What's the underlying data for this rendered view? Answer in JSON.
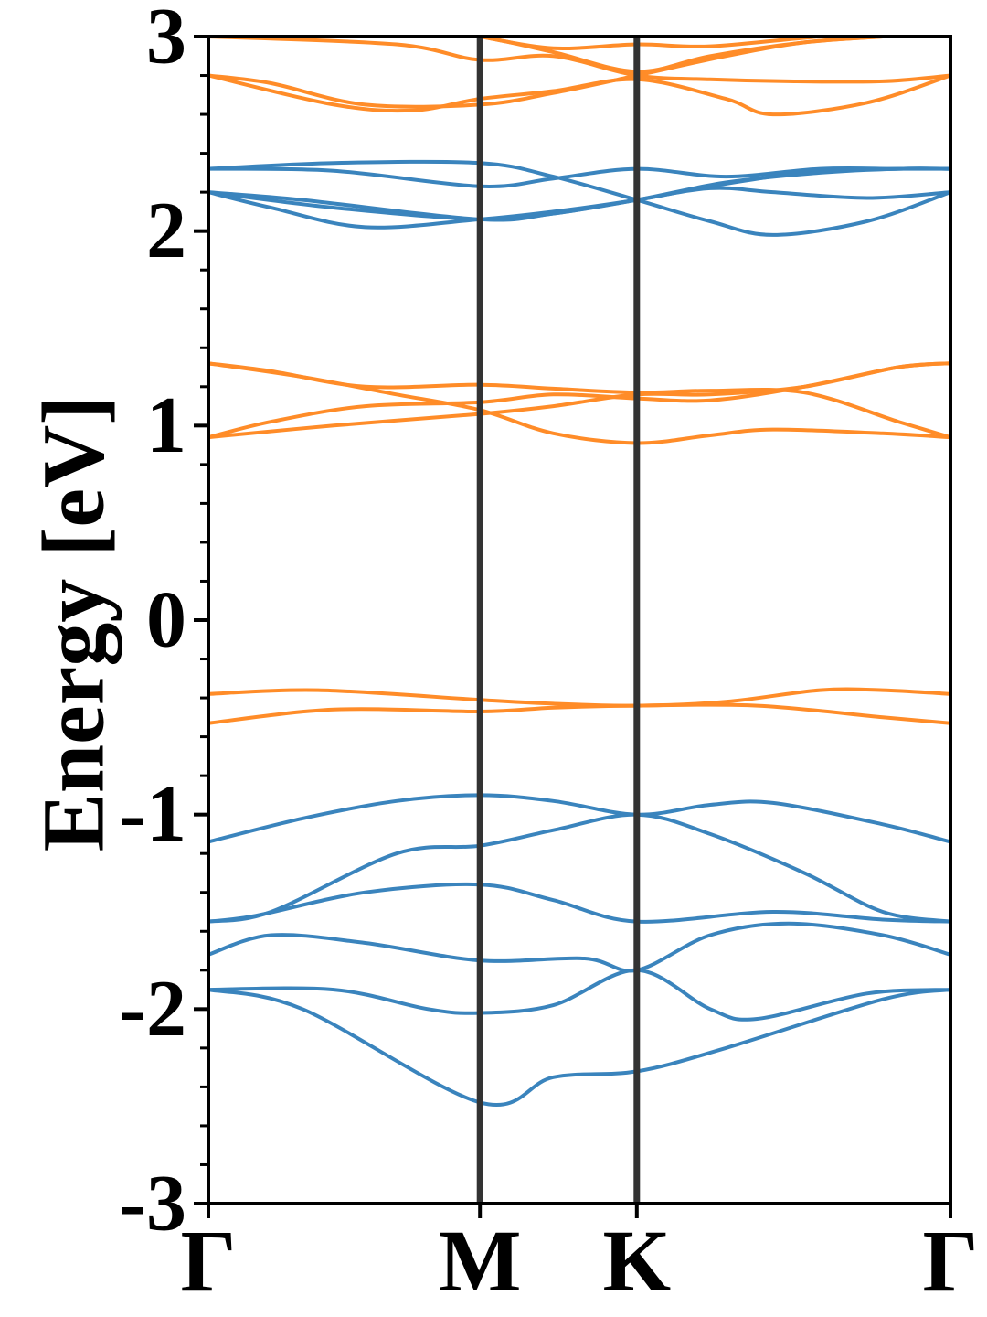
{
  "chart_data": {
    "type": "line",
    "ylabel": "Energy [eV]",
    "ylim": [
      -3,
      3
    ],
    "y_major_ticks": [
      -3,
      -2,
      -1,
      0,
      1,
      2,
      3
    ],
    "y_tick_labels": [
      "-3",
      "-2",
      "-1",
      "0",
      "1",
      "2",
      "3"
    ],
    "y_minor_step": 0.2,
    "x_ticks": [
      0,
      1.732,
      2.732,
      4.732
    ],
    "x_tick_labels": [
      "Γ",
      "M",
      "K",
      "Γ"
    ],
    "grid": false,
    "colors": {
      "blue": "#3a84bd",
      "orange": "#ff8c28",
      "kline": "#333333"
    },
    "bands": [
      {
        "color": "blue",
        "points": [
          [
            0,
            -1.9
          ],
          [
            0.6,
            -2.0
          ],
          [
            1.732,
            -2.48
          ],
          [
            2.2,
            -2.35
          ],
          [
            2.732,
            -2.32
          ],
          [
            3.3,
            -2.2
          ],
          [
            4.3,
            -1.95
          ],
          [
            4.732,
            -1.9
          ]
        ]
      },
      {
        "color": "blue",
        "points": [
          [
            0,
            -1.9
          ],
          [
            0.8,
            -1.9
          ],
          [
            1.4,
            -2.0
          ],
          [
            1.732,
            -2.02
          ],
          [
            2.2,
            -1.98
          ],
          [
            2.732,
            -1.8
          ],
          [
            3.2,
            -2.0
          ],
          [
            3.5,
            -2.05
          ],
          [
            4.2,
            -1.92
          ],
          [
            4.732,
            -1.9
          ]
        ]
      },
      {
        "color": "blue",
        "points": [
          [
            0,
            -1.72
          ],
          [
            0.4,
            -1.62
          ],
          [
            1.0,
            -1.66
          ],
          [
            1.732,
            -1.75
          ],
          [
            2.4,
            -1.74
          ],
          [
            2.732,
            -1.8
          ],
          [
            3.2,
            -1.62
          ],
          [
            3.7,
            -1.56
          ],
          [
            4.3,
            -1.62
          ],
          [
            4.732,
            -1.72
          ]
        ]
      },
      {
        "color": "blue",
        "points": [
          [
            0,
            -1.55
          ],
          [
            0.3,
            -1.52
          ],
          [
            1.0,
            -1.4
          ],
          [
            1.732,
            -1.36
          ],
          [
            2.2,
            -1.44
          ],
          [
            2.732,
            -1.55
          ],
          [
            3.6,
            -1.5
          ],
          [
            4.3,
            -1.54
          ],
          [
            4.732,
            -1.55
          ]
        ]
      },
      {
        "color": "blue",
        "points": [
          [
            0,
            -1.55
          ],
          [
            0.4,
            -1.5
          ],
          [
            1.2,
            -1.2
          ],
          [
            1.732,
            -1.16
          ],
          [
            2.2,
            -1.08
          ],
          [
            2.732,
            -1.0
          ],
          [
            3.2,
            -1.1
          ],
          [
            3.8,
            -1.3
          ],
          [
            4.3,
            -1.5
          ],
          [
            4.732,
            -1.55
          ]
        ]
      },
      {
        "color": "blue",
        "points": [
          [
            0,
            -1.14
          ],
          [
            0.6,
            -1.02
          ],
          [
            1.2,
            -0.93
          ],
          [
            1.732,
            -0.9
          ],
          [
            2.2,
            -0.93
          ],
          [
            2.732,
            -1.0
          ],
          [
            3.2,
            -0.95
          ],
          [
            3.6,
            -0.94
          ],
          [
            4.3,
            -1.05
          ],
          [
            4.732,
            -1.14
          ]
        ]
      },
      {
        "color": "orange",
        "points": [
          [
            0,
            -0.53
          ],
          [
            0.8,
            -0.46
          ],
          [
            1.732,
            -0.47
          ],
          [
            2.2,
            -0.45
          ],
          [
            2.732,
            -0.44
          ],
          [
            3.5,
            -0.44
          ],
          [
            4.3,
            -0.5
          ],
          [
            4.732,
            -0.53
          ]
        ]
      },
      {
        "color": "orange",
        "points": [
          [
            0,
            -0.38
          ],
          [
            0.7,
            -0.36
          ],
          [
            1.732,
            -0.41
          ],
          [
            2.2,
            -0.43
          ],
          [
            2.732,
            -0.44
          ],
          [
            3.3,
            -0.42
          ],
          [
            3.9,
            -0.36
          ],
          [
            4.3,
            -0.36
          ],
          [
            4.732,
            -0.38
          ]
        ]
      },
      {
        "color": "orange",
        "points": [
          [
            0,
            0.94
          ],
          [
            0.8,
            1.0
          ],
          [
            1.732,
            1.06
          ],
          [
            2.2,
            1.1
          ],
          [
            2.732,
            1.16
          ],
          [
            3.2,
            1.16
          ],
          [
            3.8,
            1.2
          ],
          [
            4.4,
            1.3
          ],
          [
            4.732,
            1.32
          ]
        ]
      },
      {
        "color": "orange",
        "points": [
          [
            0,
            0.94
          ],
          [
            0.4,
            1.02
          ],
          [
            1.0,
            1.1
          ],
          [
            1.732,
            1.12
          ],
          [
            2.2,
            1.16
          ],
          [
            2.732,
            1.14
          ],
          [
            3.2,
            1.13
          ],
          [
            3.8,
            1.2
          ],
          [
            4.4,
            1.3
          ],
          [
            4.732,
            1.32
          ]
        ]
      },
      {
        "color": "orange",
        "points": [
          [
            0,
            1.32
          ],
          [
            0.4,
            1.28
          ],
          [
            1.0,
            1.2
          ],
          [
            1.732,
            1.21
          ],
          [
            2.2,
            1.19
          ],
          [
            2.732,
            1.17
          ],
          [
            3.2,
            1.18
          ],
          [
            3.8,
            1.17
          ],
          [
            4.4,
            1.02
          ],
          [
            4.732,
            0.94
          ]
        ]
      },
      {
        "color": "orange",
        "points": [
          [
            0,
            1.32
          ],
          [
            0.6,
            1.25
          ],
          [
            1.2,
            1.16
          ],
          [
            1.732,
            1.08
          ],
          [
            2.2,
            0.96
          ],
          [
            2.732,
            0.91
          ],
          [
            3.2,
            0.95
          ],
          [
            3.6,
            0.98
          ],
          [
            4.3,
            0.96
          ],
          [
            4.732,
            0.94
          ]
        ]
      },
      {
        "color": "blue",
        "points": [
          [
            0,
            2.2
          ],
          [
            0.4,
            2.12
          ],
          [
            1.0,
            2.02
          ],
          [
            1.732,
            2.06
          ],
          [
            2.2,
            2.1
          ],
          [
            2.732,
            2.16
          ],
          [
            3.2,
            2.23
          ],
          [
            3.8,
            2.3
          ],
          [
            4.4,
            2.32
          ],
          [
            4.732,
            2.32
          ]
        ]
      },
      {
        "color": "blue",
        "points": [
          [
            0,
            2.2
          ],
          [
            0.8,
            2.12
          ],
          [
            1.732,
            2.06
          ],
          [
            2.2,
            2.09
          ],
          [
            2.732,
            2.16
          ],
          [
            3.3,
            2.25
          ],
          [
            3.9,
            2.3
          ],
          [
            4.4,
            2.32
          ],
          [
            4.732,
            2.32
          ]
        ]
      },
      {
        "color": "blue",
        "points": [
          [
            0,
            2.32
          ],
          [
            0.8,
            2.31
          ],
          [
            1.732,
            2.23
          ],
          [
            2.2,
            2.27
          ],
          [
            2.732,
            2.32
          ],
          [
            3.3,
            2.28
          ],
          [
            3.9,
            2.32
          ],
          [
            4.4,
            2.32
          ],
          [
            4.732,
            2.32
          ]
        ]
      },
      {
        "color": "blue",
        "points": [
          [
            0,
            2.32
          ],
          [
            0.8,
            2.35
          ],
          [
            1.732,
            2.35
          ],
          [
            2.2,
            2.28
          ],
          [
            2.732,
            2.16
          ],
          [
            3.2,
            2.05
          ],
          [
            3.6,
            1.98
          ],
          [
            4.2,
            2.05
          ],
          [
            4.732,
            2.2
          ]
        ]
      },
      {
        "color": "blue",
        "points": [
          [
            0,
            2.2
          ],
          [
            0.6,
            2.16
          ],
          [
            1.732,
            2.06
          ],
          [
            2.2,
            2.09
          ],
          [
            2.732,
            2.16
          ],
          [
            3.2,
            2.22
          ],
          [
            3.6,
            2.2
          ],
          [
            4.2,
            2.17
          ],
          [
            4.732,
            2.2
          ]
        ]
      },
      {
        "color": "orange",
        "points": [
          [
            0,
            2.8
          ],
          [
            0.4,
            2.76
          ],
          [
            1.0,
            2.65
          ],
          [
            1.732,
            2.65
          ],
          [
            2.2,
            2.71
          ],
          [
            2.732,
            2.8
          ],
          [
            3.3,
            2.9
          ],
          [
            3.8,
            2.97
          ],
          [
            4.3,
            3.0
          ],
          [
            4.732,
            3.02
          ]
        ]
      },
      {
        "color": "orange",
        "points": [
          [
            0,
            2.8
          ],
          [
            0.8,
            2.65
          ],
          [
            1.3,
            2.62
          ],
          [
            1.732,
            2.68
          ],
          [
            2.2,
            2.72
          ],
          [
            2.732,
            2.78
          ],
          [
            3.3,
            2.68
          ],
          [
            3.6,
            2.6
          ],
          [
            4.2,
            2.66
          ],
          [
            4.732,
            2.8
          ]
        ]
      },
      {
        "color": "orange",
        "points": [
          [
            0,
            3.0
          ],
          [
            1.2,
            2.96
          ],
          [
            1.732,
            2.88
          ],
          [
            2.2,
            2.9
          ],
          [
            2.732,
            2.8
          ],
          [
            3.2,
            2.78
          ],
          [
            3.7,
            2.77
          ],
          [
            4.3,
            2.77
          ],
          [
            4.732,
            2.8
          ]
        ]
      },
      {
        "color": "orange",
        "points": [
          [
            0,
            3.05
          ],
          [
            1.4,
            3.02
          ],
          [
            1.732,
            3.0
          ],
          [
            2.2,
            2.92
          ],
          [
            2.732,
            2.82
          ],
          [
            3.2,
            2.9
          ],
          [
            3.8,
            2.97
          ],
          [
            4.3,
            3.0
          ],
          [
            4.732,
            3.02
          ]
        ]
      },
      {
        "color": "orange",
        "points": [
          [
            1.732,
            3.0
          ],
          [
            2.2,
            2.94
          ],
          [
            2.732,
            2.96
          ],
          [
            3.2,
            2.95
          ],
          [
            3.9,
            3.0
          ],
          [
            4.732,
            3.04
          ]
        ]
      }
    ]
  }
}
